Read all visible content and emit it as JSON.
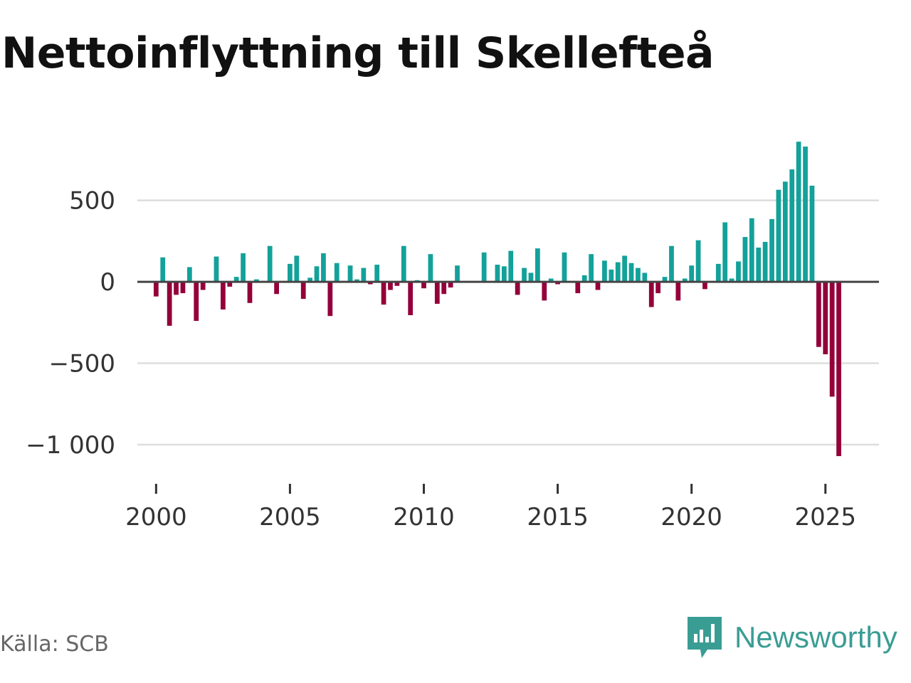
{
  "title": "Nettoinflyttning till Skellefteå",
  "source": "Källa: SCB",
  "brand": {
    "name": "Newsworthy",
    "icon": "newsworthy-logo-icon"
  },
  "colors": {
    "positive": "#13a19a",
    "negative": "#94003a",
    "grid": "#dddddd",
    "zero_line": "#444444",
    "brand": "#3a9d94"
  },
  "chart_data": {
    "type": "bar",
    "title": "Nettoinflyttning till Skellefteå",
    "xlabel": "",
    "ylabel": "",
    "xlim": [
      1999.3,
      2027.0
    ],
    "ylim": [
      -1240,
      900
    ],
    "yticks": [
      500,
      0,
      -500,
      -1000
    ],
    "ytick_labels": [
      "500",
      "0",
      "−500",
      "−1 000"
    ],
    "xticks": [
      2000,
      2005,
      2010,
      2015,
      2020,
      2025
    ],
    "xtick_labels": [
      "2000",
      "2005",
      "2010",
      "2015",
      "2020",
      "2025"
    ],
    "grid": true,
    "start": 2000,
    "periods_per_year": 4,
    "values": [
      -90,
      150,
      -270,
      -80,
      -70,
      90,
      -240,
      -50,
      0,
      155,
      -170,
      -30,
      30,
      175,
      -130,
      15,
      0,
      220,
      -75,
      0,
      110,
      160,
      -105,
      25,
      95,
      175,
      -210,
      115,
      0,
      100,
      15,
      85,
      -15,
      105,
      -140,
      -50,
      -25,
      220,
      -205,
      10,
      -40,
      170,
      -135,
      -75,
      -35,
      100,
      0,
      0,
      0,
      180,
      0,
      105,
      95,
      190,
      -80,
      85,
      55,
      205,
      -115,
      20,
      -15,
      180,
      0,
      -70,
      40,
      170,
      -50,
      130,
      75,
      120,
      160,
      115,
      85,
      55,
      -155,
      -70,
      30,
      220,
      -115,
      20,
      100,
      255,
      -45,
      0,
      110,
      365,
      20,
      125,
      275,
      390,
      210,
      245,
      385,
      565,
      615,
      690,
      860,
      830,
      590,
      -400,
      -445,
      -705,
      -1070
    ]
  }
}
